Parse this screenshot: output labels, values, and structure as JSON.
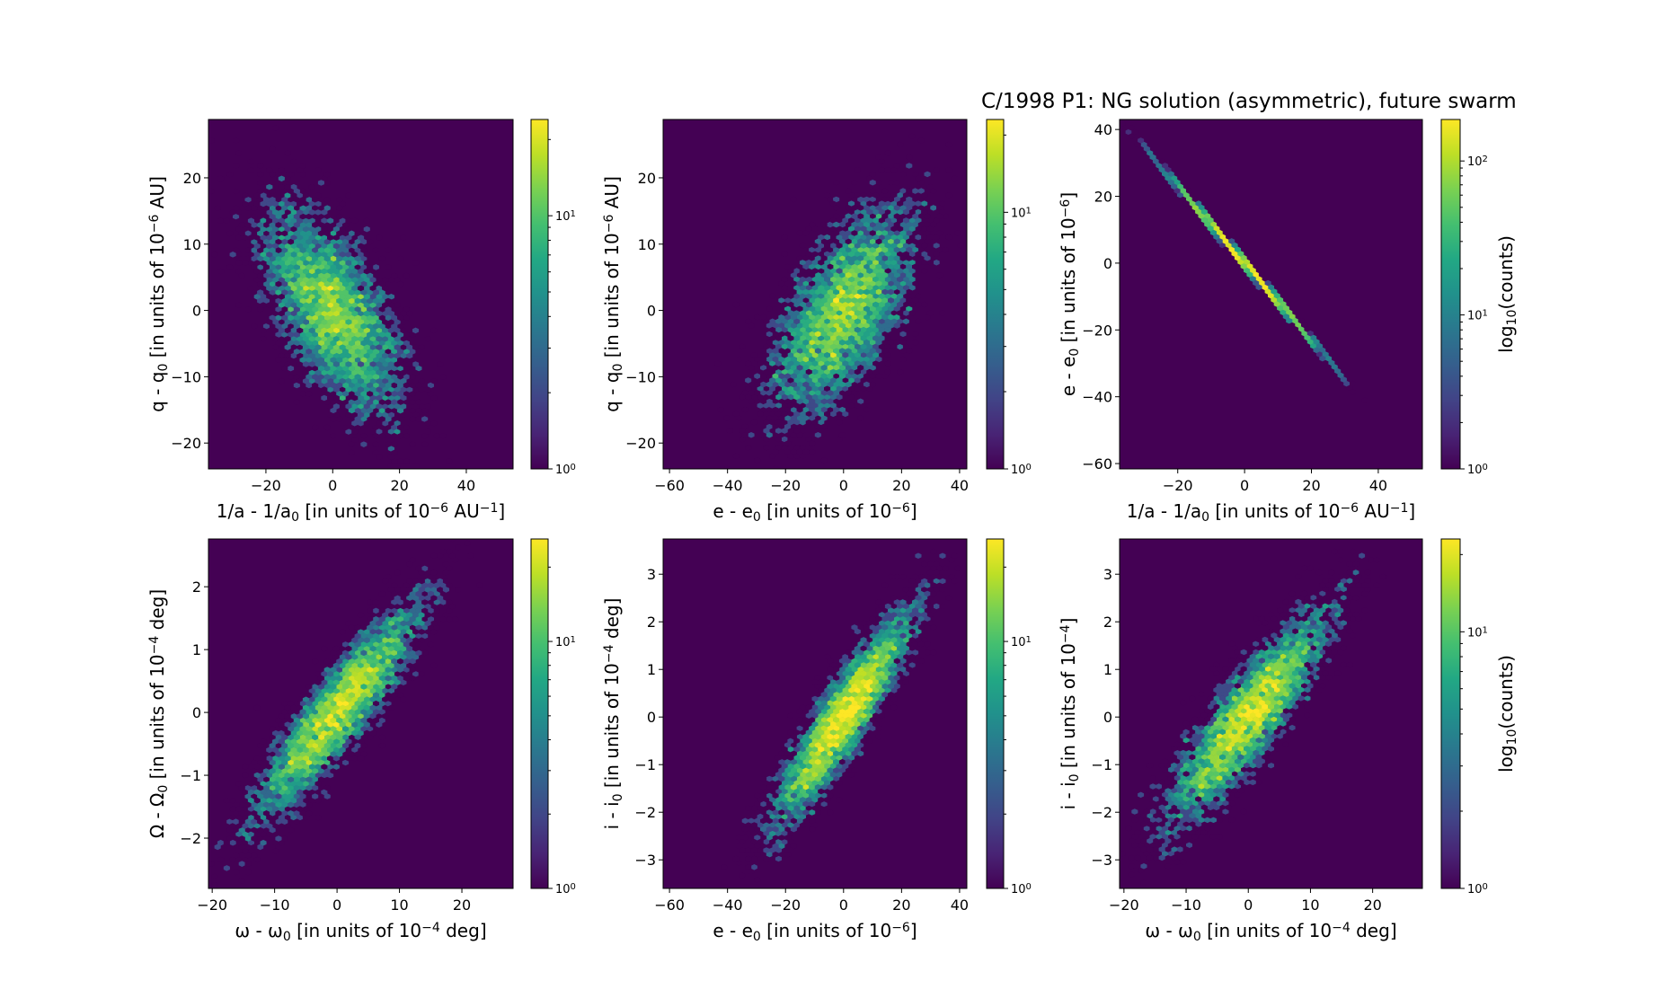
{
  "figure": {
    "title": "C/1998 P1:  NG solution (asymmetric), future swarm"
  },
  "chart_data": [
    {
      "type": "heatmap",
      "subtype": "hexbin",
      "id": "p1",
      "xlabel": {
        "main": "1/a - 1/a",
        "sub": "0",
        "rest": " [in units of 10",
        "sup": "−6",
        "tail": " AU",
        "sup2": "−1",
        "end": "]"
      },
      "ylabel": {
        "main": "q - q",
        "sub": "0",
        "rest": " [in units of 10",
        "sup": "−6",
        "tail": " AU]"
      },
      "xlim": [
        -37.2,
        54.0
      ],
      "ylim": [
        -23.9,
        28.8
      ],
      "xticks": [
        -20,
        0,
        20,
        40
      ],
      "yticks": [
        -20,
        -10,
        0,
        10,
        20
      ],
      "xtick_labels": [
        "−20",
        "0",
        "20",
        "40"
      ],
      "ytick_labels": [
        "−20",
        "−10",
        "0",
        "10",
        "20"
      ],
      "distribution": {
        "mean": [
          0,
          0
        ],
        "sigma": [
          10.5,
          7.8
        ],
        "corr": -0.62,
        "n": 5000,
        "seed": 11
      },
      "colorbar": {
        "scale": "log",
        "vmin": 1,
        "vmax": 24,
        "ticks": [
          1,
          10
        ],
        "tick_labels": [
          "10^0",
          "10^1"
        ],
        "label": ""
      },
      "colormap": "viridis"
    },
    {
      "type": "heatmap",
      "subtype": "hexbin",
      "id": "p2",
      "xlabel": {
        "main": "e - e",
        "sub": "0",
        "rest": " [in units of 10",
        "sup": "−6",
        "tail": "",
        "sup2": "",
        "end": "]"
      },
      "ylabel": {
        "main": "q - q",
        "sub": "0",
        "rest": " [in units of 10",
        "sup": "−6",
        "tail": " AU]"
      },
      "xlim": [
        -62.2,
        42.5
      ],
      "ylim": [
        -23.9,
        28.8
      ],
      "xticks": [
        -60,
        -40,
        -20,
        0,
        20,
        40
      ],
      "yticks": [
        -20,
        -10,
        0,
        10,
        20
      ],
      "xtick_labels": [
        "−60",
        "−40",
        "−20",
        "0",
        "20",
        "40"
      ],
      "ytick_labels": [
        "−20",
        "−10",
        "0",
        "10",
        "20"
      ],
      "distribution": {
        "mean": [
          0,
          0
        ],
        "sigma": [
          12.2,
          7.8
        ],
        "corr": 0.62,
        "n": 5000,
        "seed": 11
      },
      "colorbar": {
        "scale": "log",
        "vmin": 1,
        "vmax": 23,
        "ticks": [
          1,
          10
        ],
        "tick_labels": [
          "10^0",
          "10^1"
        ],
        "label": ""
      },
      "colormap": "viridis"
    },
    {
      "type": "heatmap",
      "subtype": "hexbin",
      "id": "p3",
      "xlabel": {
        "main": "1/a - 1/a",
        "sub": "0",
        "rest": " [in units of 10",
        "sup": "−6",
        "tail": " AU",
        "sup2": "−1",
        "end": "]"
      },
      "ylabel": {
        "main": "e - e",
        "sub": "0",
        "rest": " [in units of 10",
        "sup": "−6",
        "tail": "]"
      },
      "xlim": [
        -37.4,
        53.2
      ],
      "ylim": [
        -61.6,
        43.0
      ],
      "xticks": [
        -20,
        0,
        20,
        40
      ],
      "yticks": [
        -60,
        -40,
        -20,
        0,
        20,
        40
      ],
      "xtick_labels": [
        "−20",
        "0",
        "20",
        "40"
      ],
      "ytick_labels": [
        "−60",
        "−40",
        "−20",
        "0",
        "20",
        "40"
      ],
      "distribution": {
        "mean": [
          0,
          0
        ],
        "sigma": [
          10.5,
          12.2
        ],
        "corr": -0.9995,
        "n": 5000,
        "seed": 11
      },
      "colorbar": {
        "scale": "log",
        "vmin": 1,
        "vmax": 186,
        "ticks": [
          1,
          10,
          100
        ],
        "tick_labels": [
          "10^0",
          "10^1",
          "10^2"
        ],
        "label": "log10(counts)"
      },
      "colormap": "viridis"
    },
    {
      "type": "heatmap",
      "subtype": "hexbin",
      "id": "p4",
      "xlabel": {
        "main": "ω - ω",
        "sub": "0",
        "rest": " [in units of 10",
        "sup": "−4",
        "tail": " deg",
        "sup2": "",
        "end": "]"
      },
      "ylabel": {
        "main": "Ω - Ω",
        "sub": "0",
        "rest": " [in units of 10",
        "sup": "−4",
        "tail": " deg]"
      },
      "xlim": [
        -20.6,
        28.2
      ],
      "ylim": [
        -2.8,
        2.76
      ],
      "xticks": [
        -20,
        -10,
        0,
        10,
        20
      ],
      "yticks": [
        -2,
        -1,
        0,
        1,
        2
      ],
      "xtick_labels": [
        "−20",
        "−10",
        "0",
        "10",
        "20"
      ],
      "ytick_labels": [
        "−2",
        "−1",
        "0",
        "1",
        "2"
      ],
      "distribution": {
        "mean": [
          0,
          0
        ],
        "sigma": [
          6.6,
          0.85
        ],
        "corr": 0.9,
        "n": 5000,
        "seed": 23
      },
      "colorbar": {
        "scale": "log",
        "vmin": 1,
        "vmax": 26,
        "ticks": [
          1,
          10
        ],
        "tick_labels": [
          "10^0",
          "10^1"
        ],
        "label": ""
      },
      "colormap": "viridis"
    },
    {
      "type": "heatmap",
      "subtype": "hexbin",
      "id": "p5",
      "xlabel": {
        "main": "e - e",
        "sub": "0",
        "rest": " [in units of 10",
        "sup": "−6",
        "tail": "",
        "sup2": "",
        "end": "]"
      },
      "ylabel": {
        "main": "i - i",
        "sub": "0",
        "rest": " [in units of 10",
        "sup": "−4",
        "tail": " deg]"
      },
      "xlim": [
        -62.2,
        42.5
      ],
      "ylim": [
        -3.6,
        3.74
      ],
      "xticks": [
        -60,
        -40,
        -20,
        0,
        20,
        40
      ],
      "yticks": [
        -3,
        -2,
        -1,
        0,
        1,
        2,
        3
      ],
      "xtick_labels": [
        "−60",
        "−40",
        "−20",
        "0",
        "20",
        "40"
      ],
      "ytick_labels": [
        "−3",
        "−2",
        "−1",
        "0",
        "1",
        "2",
        "3"
      ],
      "distribution": {
        "mean": [
          0,
          0
        ],
        "sigma": [
          12.2,
          1.15
        ],
        "corr": 0.91,
        "n": 5000,
        "seed": 37
      },
      "colorbar": {
        "scale": "log",
        "vmin": 1,
        "vmax": 26,
        "ticks": [
          1,
          10
        ],
        "tick_labels": [
          "10^0",
          "10^1"
        ],
        "label": ""
      },
      "colormap": "viridis"
    },
    {
      "type": "heatmap",
      "subtype": "hexbin",
      "id": "p6",
      "xlabel": {
        "main": "ω - ω",
        "sub": "0",
        "rest": " [in units of 10",
        "sup": "−4",
        "tail": " deg",
        "sup2": "",
        "end": "]"
      },
      "ylabel": {
        "main": "i - i",
        "sub": "0",
        "rest": " [in units of 10",
        "sup": "−4",
        "tail": "]"
      },
      "xlim": [
        -20.7,
        28.0
      ],
      "ylim": [
        -3.6,
        3.74
      ],
      "xticks": [
        -20,
        -10,
        0,
        10,
        20
      ],
      "yticks": [
        -3,
        -2,
        -1,
        0,
        1,
        2,
        3
      ],
      "xtick_labels": [
        "−20",
        "−10",
        "0",
        "10",
        "20"
      ],
      "ytick_labels": [
        "−3",
        "−2",
        "−1",
        "0",
        "1",
        "2",
        "3"
      ],
      "distribution": {
        "mean": [
          0,
          0
        ],
        "sigma": [
          6.6,
          1.15
        ],
        "corr": 0.88,
        "n": 5000,
        "seed": 37
      },
      "colorbar": {
        "scale": "log",
        "vmin": 1,
        "vmax": 23,
        "ticks": [
          1,
          10
        ],
        "tick_labels": [
          "10^0",
          "10^1"
        ],
        "label": "log10(counts)"
      },
      "colormap": "viridis"
    }
  ]
}
